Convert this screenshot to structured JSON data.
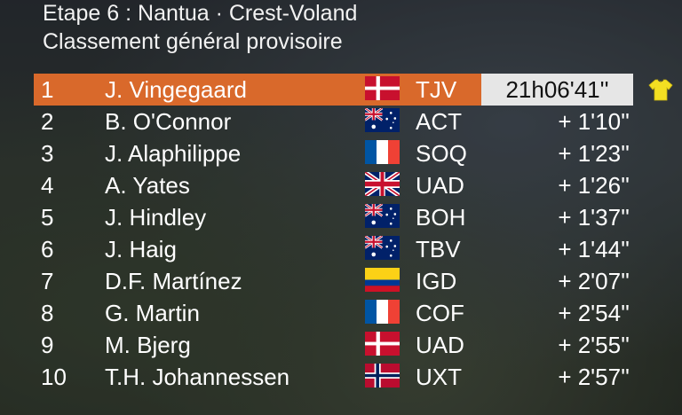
{
  "header": {
    "stage_title": "Etape 6 : Nantua · Crest-Voland",
    "subtitle": "Classement général provisoire"
  },
  "colors": {
    "leader_bar": "#d9692b",
    "leader_time_bg": "#e6e6e6",
    "yellow_jersey": "#f3df22"
  },
  "standings": [
    {
      "rank": "1",
      "rider": "J. Vingegaard",
      "flag": "denmark",
      "team": "TJV",
      "time": "21h06'41''",
      "leader": true,
      "jersey": "yellow-jersey-icon"
    },
    {
      "rank": "2",
      "rider": "B. O'Connor",
      "flag": "australia",
      "team": "ACT",
      "time": "+ 1'10''"
    },
    {
      "rank": "3",
      "rider": "J. Alaphilippe",
      "flag": "france",
      "team": "SOQ",
      "time": "+ 1'23''"
    },
    {
      "rank": "4",
      "rider": "A. Yates",
      "flag": "united-kingdom",
      "team": "UAD",
      "time": "+ 1'26''"
    },
    {
      "rank": "5",
      "rider": "J. Hindley",
      "flag": "australia",
      "team": "BOH",
      "time": "+ 1'37''"
    },
    {
      "rank": "6",
      "rider": "J. Haig",
      "flag": "australia",
      "team": "TBV",
      "time": "+ 1'44''"
    },
    {
      "rank": "7",
      "rider": "D.F. Martínez",
      "flag": "colombia",
      "team": "IGD",
      "time": "+ 2'07''"
    },
    {
      "rank": "8",
      "rider": "G. Martin",
      "flag": "france",
      "team": "COF",
      "time": "+ 2'54''"
    },
    {
      "rank": "9",
      "rider": "M. Bjerg",
      "flag": "denmark",
      "team": "UAD",
      "time": "+ 2'55''"
    },
    {
      "rank": "10",
      "rider": "T.H. Johannessen",
      "flag": "norway",
      "team": "UXT",
      "time": "+ 2'57''"
    }
  ]
}
